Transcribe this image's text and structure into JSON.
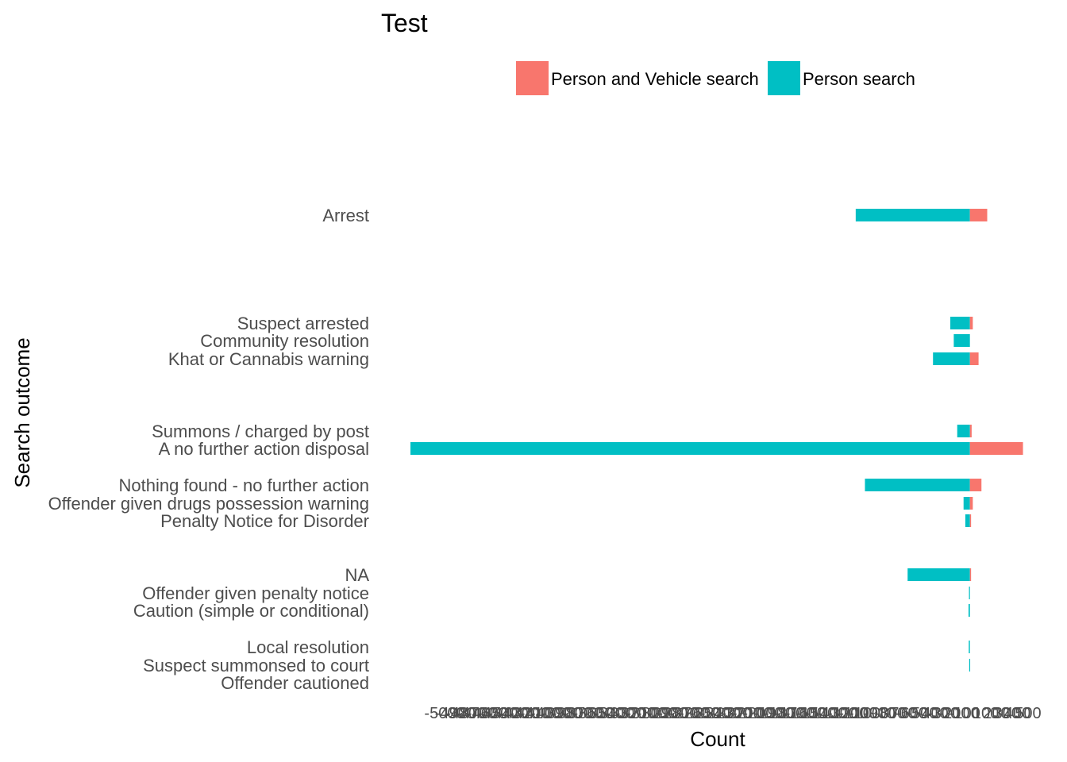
{
  "chart_data": {
    "type": "bar",
    "orientation": "horizontal",
    "stacking": "diverging",
    "title": "Test",
    "xlabel": "Count",
    "ylabel": "Search outcome",
    "xlim": [
      -48500,
      4700
    ],
    "xticks": [
      -5000,
      -4900,
      -4800,
      -4700,
      -4600,
      -4500,
      -4400,
      -4300,
      -4200,
      -4100,
      -4000,
      -3900,
      -3800,
      -3700,
      -3600,
      -3500,
      -3400,
      -3300,
      -3200,
      -3100,
      -3000,
      -2900,
      -2800,
      -2700,
      -2600,
      -2500,
      -2400,
      -2300,
      -2200,
      -2100,
      -2000,
      -1900,
      -1800,
      -1700,
      -1600,
      -1500,
      -1400,
      -1300,
      -1200,
      -1100,
      -1000,
      -900,
      -800,
      -700,
      -600,
      -500,
      -400,
      -300,
      -200,
      -100,
      0,
      100,
      200,
      300,
      400,
      500
    ],
    "legend": {
      "position": "top",
      "entries": [
        "Person and Vehicle search",
        "Person search"
      ]
    },
    "grid": false,
    "colors": {
      "Person and Vehicle search": "#F8766D",
      "Person search": "#00BFC4"
    },
    "categories": [
      "Arrest",
      "Suspect arrested",
      "Community resolution",
      "Khat or Cannabis warning",
      "Summons / charged by post",
      "A no further action disposal",
      "Nothing found - no further action",
      "Offender given drugs possession warning",
      "Penalty Notice for Disorder",
      "NA",
      "Offender given penalty notice",
      "Caution (simple or conditional)",
      "Local resolution",
      "Suspect summonsed to court",
      "Offender cautioned"
    ],
    "series": [
      {
        "name": "Person search",
        "values": [
          -9900,
          -1700,
          -1400,
          -3200,
          -1100,
          -48500,
          -9100,
          -550,
          -400,
          -5400,
          -80,
          -120,
          -100,
          -60,
          0
        ]
      },
      {
        "name": "Person and Vehicle search",
        "values": [
          1500,
          250,
          0,
          750,
          150,
          4600,
          1000,
          250,
          100,
          100,
          0,
          0,
          0,
          0,
          0
        ]
      }
    ]
  }
}
